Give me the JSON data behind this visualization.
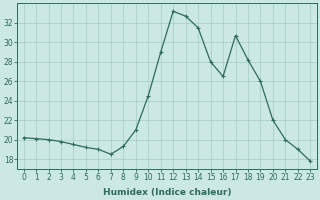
{
  "x": [
    0,
    1,
    2,
    3,
    4,
    5,
    6,
    7,
    8,
    9,
    10,
    11,
    12,
    13,
    14,
    15,
    16,
    17,
    18,
    19,
    20,
    21,
    22,
    23
  ],
  "y": [
    20.2,
    20.1,
    20.0,
    19.8,
    19.5,
    19.2,
    19.0,
    18.5,
    19.3,
    21.0,
    24.5,
    29.0,
    33.2,
    32.7,
    31.5,
    28.0,
    26.5,
    30.7,
    28.2,
    26.0,
    22.0,
    20.0,
    19.0,
    17.8
  ],
  "line_color": "#2d6b5a",
  "marker": "+",
  "marker_size": 3.5,
  "bg_color": "#cce8e4",
  "grid_color": "#aacfca",
  "xlabel": "Humidex (Indice chaleur)",
  "ylim": [
    17,
    34
  ],
  "xlim": [
    -0.5,
    23.5
  ],
  "yticks": [
    18,
    20,
    22,
    24,
    26,
    28,
    30,
    32
  ],
  "xticks": [
    0,
    1,
    2,
    3,
    4,
    5,
    6,
    7,
    8,
    9,
    10,
    11,
    12,
    13,
    14,
    15,
    16,
    17,
    18,
    19,
    20,
    21,
    22,
    23
  ],
  "tick_label_size": 5.5,
  "xlabel_size": 6.5,
  "lw": 0.9
}
